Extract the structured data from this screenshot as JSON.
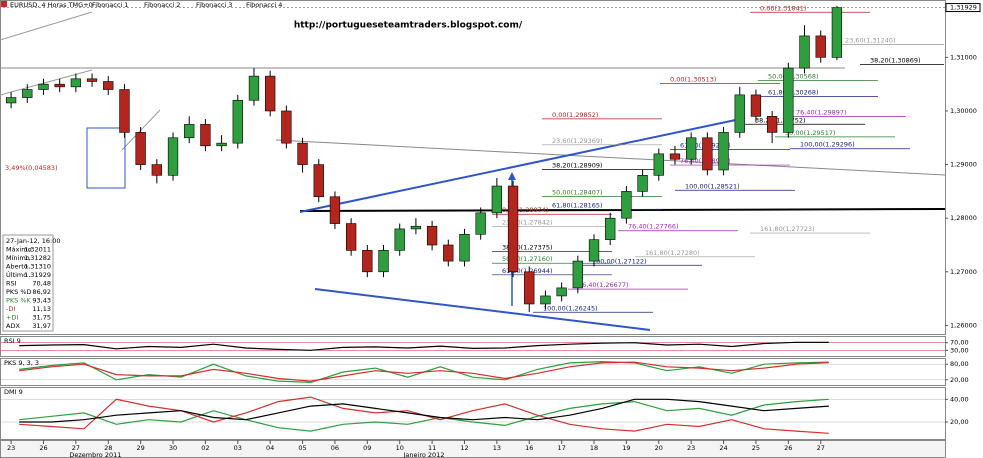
{
  "toolbar": {
    "symbol": "EURUSD, 4 Horas TMG+0",
    "items": [
      "Fibonacci 1",
      "Fibonacci 2",
      "Fibonacci 3",
      "Fibonacci 4"
    ]
  },
  "info_box": {
    "rows": [
      [
        "27-Jan-12, 16:00",
        ""
      ],
      [
        "Máximo",
        "1,32011"
      ],
      [
        "Mínimo",
        "1,31282"
      ],
      [
        "Aberto",
        "1,31310"
      ],
      [
        "Último",
        "1,31929"
      ],
      [
        "RSI",
        "70,48"
      ],
      [
        "PKS %D",
        "86,92"
      ],
      [
        "PKS %K",
        "93,43"
      ],
      [
        "-DI",
        "11,13"
      ],
      [
        "+DI",
        "31,75"
      ],
      [
        "ADX",
        "31,97"
      ]
    ]
  },
  "chart_data": [
    {
      "type": "candlestick",
      "title": "http://portugueseteamtraders.blogspot.com/",
      "categories": [
        "23",
        null,
        "26",
        null,
        "27",
        null,
        "28",
        null,
        "29",
        null,
        "30",
        null,
        "02",
        null,
        "03",
        null,
        "04",
        null,
        "05",
        null,
        "06",
        null,
        "09",
        null,
        "10",
        null,
        "11",
        null,
        "12",
        null,
        "13",
        null,
        "16",
        null,
        "17",
        null,
        "18",
        null,
        "19",
        null,
        "20",
        null,
        "23",
        null,
        "24",
        null,
        "25",
        null,
        "26",
        null,
        "27",
        null
      ],
      "months": [
        "Dezembro 2011",
        "Janeiro 2012"
      ],
      "open": [
        1.3015,
        1.3025,
        1.304,
        1.305,
        1.3045,
        1.306,
        1.3055,
        1.304,
        1.296,
        1.29,
        1.288,
        1.295,
        1.2975,
        1.2935,
        1.294,
        1.302,
        1.3065,
        1.3,
        1.294,
        1.29,
        1.284,
        1.279,
        1.274,
        1.27,
        1.274,
        1.278,
        1.2785,
        1.275,
        1.272,
        1.277,
        1.281,
        1.286,
        1.27,
        1.264,
        1.2655,
        1.267,
        1.272,
        1.276,
        1.28,
        1.285,
        1.288,
        1.292,
        1.291,
        1.295,
        1.289,
        1.296,
        1.303,
        1.299,
        1.296,
        1.308,
        1.314,
        1.31
      ],
      "high": [
        1.3035,
        1.305,
        1.306,
        1.306,
        1.307,
        1.307,
        1.3065,
        1.305,
        1.297,
        1.291,
        1.296,
        1.299,
        1.2985,
        1.2955,
        1.303,
        1.308,
        1.3075,
        1.301,
        1.295,
        1.291,
        1.285,
        1.28,
        1.275,
        1.275,
        1.279,
        1.28,
        1.2795,
        1.276,
        1.278,
        1.282,
        1.2875,
        1.287,
        1.271,
        1.2665,
        1.268,
        1.273,
        1.277,
        1.281,
        1.286,
        1.289,
        1.293,
        1.2935,
        1.296,
        1.296,
        1.297,
        1.3045,
        1.304,
        1.3,
        1.309,
        1.316,
        1.315,
        1.3196
      ],
      "low": [
        1.3005,
        1.3015,
        1.303,
        1.3035,
        1.3035,
        1.3045,
        1.303,
        1.295,
        1.289,
        1.2865,
        1.287,
        1.294,
        1.2925,
        1.2925,
        1.293,
        1.301,
        1.299,
        1.293,
        1.2885,
        1.283,
        1.278,
        1.273,
        1.269,
        1.269,
        1.273,
        1.277,
        1.274,
        1.271,
        1.271,
        1.276,
        1.28,
        1.269,
        1.2625,
        1.263,
        1.2645,
        1.266,
        1.271,
        1.275,
        1.279,
        1.284,
        1.287,
        1.29,
        1.29,
        1.288,
        1.288,
        1.295,
        1.298,
        1.294,
        1.295,
        1.307,
        1.309,
        1.3095
      ],
      "close": [
        1.3025,
        1.304,
        1.305,
        1.3045,
        1.306,
        1.3055,
        1.304,
        1.296,
        1.29,
        1.288,
        1.295,
        1.2975,
        1.2935,
        1.294,
        1.302,
        1.3065,
        1.3,
        1.294,
        1.29,
        1.284,
        1.279,
        1.274,
        1.27,
        1.274,
        1.278,
        1.2785,
        1.275,
        1.272,
        1.277,
        1.281,
        1.286,
        1.27,
        1.264,
        1.2655,
        1.267,
        1.272,
        1.276,
        1.28,
        1.285,
        1.288,
        1.292,
        1.291,
        1.295,
        1.289,
        1.296,
        1.303,
        1.299,
        1.296,
        1.308,
        1.314,
        1.31,
        1.3193
      ],
      "up_color": "#2e9e3e",
      "down_color": "#b3261e",
      "ylim": [
        1.2584,
        1.3207
      ],
      "yticks": [
        {
          "value": 1.31,
          "label": "1,31000"
        },
        {
          "value": 1.3,
          "label": "1,30000"
        },
        {
          "value": 1.29,
          "label": "1,29000"
        },
        {
          "value": 1.28,
          "label": "1,28000"
        },
        {
          "value": 1.27,
          "label": "1,27000"
        },
        {
          "value": 1.26,
          "label": "1,26000"
        }
      ],
      "last_price": {
        "value": 1.31929,
        "label": "1,31929"
      },
      "note": "3,49%(0,04583)",
      "annotations": [
        {
          "label": "0,00(1,31841)",
          "value": 1.31841,
          "color": "#b22222"
        },
        {
          "label": "23,60(1,31240)",
          "value": 1.3124,
          "color": "#999999"
        },
        {
          "label": "38,20(1,30869)",
          "value": 1.30869,
          "color": "#000000"
        },
        {
          "label": "50,00(1,30568)",
          "value": 1.30568,
          "color": "#2e7d32"
        },
        {
          "label": "61,80(1,30268)",
          "value": 1.30268,
          "color": "#1a237e"
        },
        {
          "label": "76,40(1,29897)",
          "value": 1.29897,
          "color": "#9c27b0"
        },
        {
          "label": "100,00(1,29296)",
          "value": 1.29296,
          "color": "#1a237e"
        },
        {
          "label": "0,00(1,30513)",
          "value": 1.30513,
          "color": "#b22222"
        },
        {
          "label": "38,20(1,29752)",
          "value": 1.29752,
          "color": "#000000"
        },
        {
          "label": "50,00(1,29517)",
          "value": 1.29517,
          "color": "#2e7d32"
        },
        {
          "label": "61,80(1,29282)",
          "value": 1.29282,
          "color": "#1a237e"
        },
        {
          "label": "76,40(1,28991)",
          "value": 1.28991,
          "color": "#9c27b0"
        },
        {
          "label": "100,00(1,28521)",
          "value": 1.28521,
          "color": "#1a237e"
        },
        {
          "label": "0,00(1,29852)",
          "value": 1.29852,
          "color": "#b22222"
        },
        {
          "label": "23,60(1,29369)",
          "value": 1.29369,
          "color": "#999999"
        },
        {
          "label": "38,20(1,28909)",
          "value": 1.28909,
          "color": "#000000"
        },
        {
          "label": "50,00(1,28407)",
          "value": 1.28407,
          "color": "#2e7d32"
        },
        {
          "label": "61,80(1,28165)",
          "value": 1.28165,
          "color": "#1a237e"
        },
        {
          "label": "0,00(1,28074)",
          "value": 1.28074,
          "color": "#b22222"
        },
        {
          "label": "23,60(1,27842)",
          "value": 1.27842,
          "color": "#999999"
        },
        {
          "label": "38,20(1,27375)",
          "value": 1.27375,
          "color": "#000000"
        },
        {
          "label": "50,00(1,27160)",
          "value": 1.2716,
          "color": "#2e7d32"
        },
        {
          "label": "61,80(1,26944)",
          "value": 1.26944,
          "color": "#1a237e"
        },
        {
          "label": "76,40(1,27766)",
          "value": 1.27766,
          "color": "#9c27b0"
        },
        {
          "label": "100,00(1,27122)",
          "value": 1.27122,
          "color": "#1a237e"
        },
        {
          "label": "76,40(1,26677)",
          "value": 1.26677,
          "color": "#9c27b0"
        },
        {
          "label": "100,00(1,26245)",
          "value": 1.26245,
          "color": "#1a237e"
        },
        {
          "label": "161,80(1,27723)",
          "value": 1.27723,
          "color": "#999999"
        },
        {
          "label": "161,80(1,27280)",
          "value": 1.2728,
          "color": "#999999"
        }
      ]
    },
    {
      "type": "line",
      "title": "RSI 9",
      "ylim": [
        0,
        100
      ],
      "yticks": [
        {
          "value": 70,
          "label": "70,00"
        },
        {
          "value": 30,
          "label": "30,00"
        }
      ],
      "series": [
        {
          "color": "#000000",
          "values": [
            55,
            58,
            60,
            38,
            50,
            45,
            62,
            42,
            35,
            30,
            45,
            48,
            42,
            52,
            40,
            42,
            55,
            62,
            68,
            70,
            58,
            62,
            50,
            66,
            72,
            72
          ]
        }
      ]
    },
    {
      "type": "line",
      "title": "PKS 9, 3, 3",
      "ylim": [
        0,
        100
      ],
      "yticks": [
        {
          "value": 80,
          "label": "80,00"
        },
        {
          "value": 20,
          "label": "20,00"
        }
      ],
      "series": [
        {
          "color": "#2e9e3e",
          "values": [
            60,
            75,
            85,
            20,
            40,
            30,
            80,
            35,
            15,
            10,
            50,
            65,
            30,
            70,
            30,
            20,
            60,
            85,
            90,
            85,
            55,
            70,
            45,
            80,
            85,
            88
          ]
        },
        {
          "color": "#d32f2f",
          "values": [
            55,
            70,
            80,
            40,
            35,
            35,
            60,
            45,
            25,
            15,
            35,
            55,
            45,
            55,
            45,
            25,
            45,
            70,
            85,
            88,
            70,
            65,
            55,
            65,
            80,
            86
          ]
        }
      ]
    },
    {
      "type": "line",
      "title": "DMI 9",
      "ylim": [
        5,
        50
      ],
      "yticks": [
        {
          "value": 40,
          "label": "40,00"
        },
        {
          "value": 20,
          "label": "20,00"
        }
      ],
      "series": [
        {
          "color": "#2e9e3e",
          "values": [
            22,
            25,
            28,
            18,
            22,
            20,
            30,
            22,
            15,
            12,
            18,
            20,
            18,
            24,
            20,
            17,
            25,
            32,
            36,
            38,
            30,
            32,
            26,
            35,
            38,
            40
          ]
        },
        {
          "color": "#d32f2f",
          "values": [
            18,
            16,
            14,
            40,
            34,
            30,
            20,
            28,
            38,
            42,
            32,
            28,
            30,
            22,
            30,
            36,
            26,
            18,
            14,
            12,
            18,
            16,
            22,
            14,
            12,
            10
          ]
        },
        {
          "color": "#000000",
          "values": [
            20,
            20,
            22,
            26,
            28,
            30,
            24,
            22,
            28,
            34,
            36,
            32,
            28,
            24,
            22,
            24,
            22,
            26,
            32,
            40,
            40,
            38,
            34,
            30,
            32,
            34
          ]
        }
      ]
    }
  ]
}
